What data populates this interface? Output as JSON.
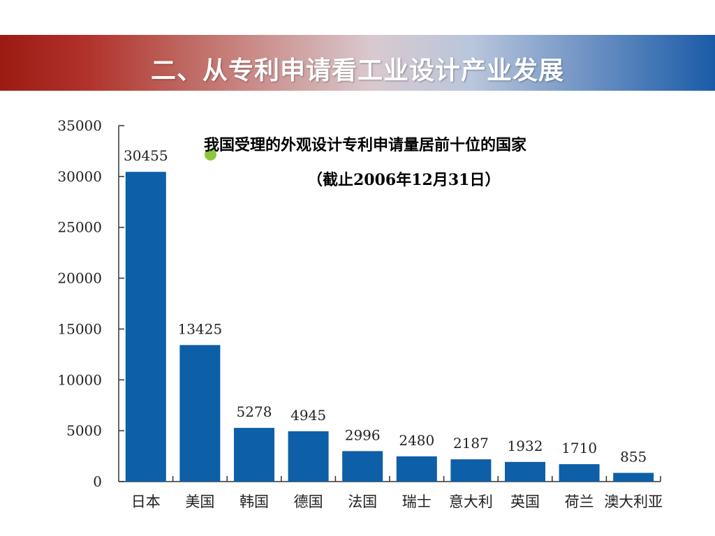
{
  "slide": {
    "title": "二、从专利申请看工业设计产业发展"
  },
  "chart_data": {
    "type": "bar",
    "title": "我国受理的外观设计专利申请量居前十位的国家",
    "subtitle": "（截止2006年12月31日）",
    "xlabel": "",
    "ylabel": "",
    "categories": [
      "日本",
      "美国",
      "韩国",
      "德国",
      "法国",
      "瑞士",
      "意大利",
      "英国",
      "荷兰",
      "澳大利亚"
    ],
    "values": [
      30455,
      13425,
      5278,
      4945,
      2996,
      2480,
      2187,
      1932,
      1710,
      855
    ],
    "ylim": [
      0,
      35000
    ],
    "yticks": [
      0,
      5000,
      10000,
      15000,
      20000,
      25000,
      30000,
      35000
    ],
    "ytick_labels": [
      "0",
      "5000",
      "10000",
      "15000",
      "20000",
      "25000",
      "30000",
      "35000"
    ],
    "data_labels": [
      "30455",
      "13425",
      "5278",
      "4945",
      "2996",
      "2480",
      "2187",
      "1932",
      "1710",
      "855"
    ],
    "bar_color": "#0d5fa7",
    "grid": false
  },
  "colors": {
    "banner_left": "#9b1b13",
    "banner_right": "#1a5ba8",
    "bullet": "#8cc63f"
  }
}
